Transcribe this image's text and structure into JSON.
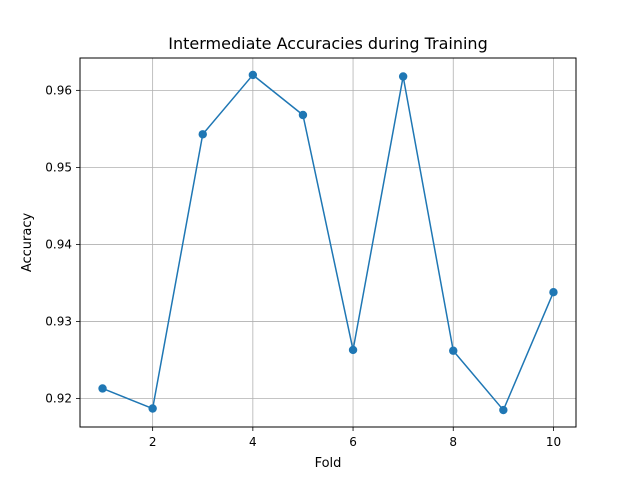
{
  "chart_data": {
    "type": "line",
    "title": "Intermediate Accuracies during Training",
    "xlabel": "Fold",
    "ylabel": "Accuracy",
    "x": [
      1,
      2,
      3,
      4,
      5,
      6,
      7,
      8,
      9,
      10
    ],
    "series": [
      {
        "values": [
          0.9213,
          0.9187,
          0.9543,
          0.962,
          0.9568,
          0.9263,
          0.9618,
          0.9262,
          0.9185,
          0.9338
        ],
        "color": "#1f77b4",
        "marker": "circle"
      }
    ],
    "xlim": [
      0.55,
      10.45
    ],
    "ylim": [
      0.9163,
      0.9642
    ],
    "xticks": [
      2,
      4,
      6,
      8,
      10
    ],
    "xtick_labels": [
      "2",
      "4",
      "6",
      "8",
      "10"
    ],
    "yticks": [
      0.92,
      0.93,
      0.94,
      0.95,
      0.96
    ],
    "ytick_labels": [
      "0.92",
      "0.93",
      "0.94",
      "0.95",
      "0.96"
    ],
    "grid": true,
    "grid_color": "#b0b0b0",
    "axis_color": "#000000"
  }
}
